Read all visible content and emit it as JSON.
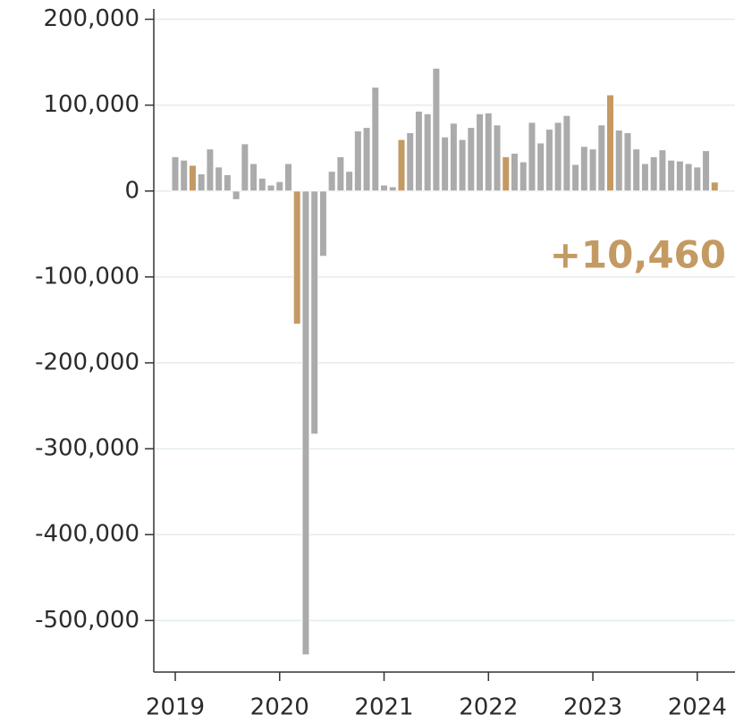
{
  "chart_data": {
    "type": "bar",
    "categories": [
      "2019",
      null,
      null,
      null,
      null,
      null,
      null,
      null,
      null,
      null,
      null,
      null,
      "2020",
      null,
      null,
      null,
      null,
      null,
      null,
      null,
      null,
      null,
      null,
      null,
      "2021",
      null,
      null,
      null,
      null,
      null,
      null,
      null,
      null,
      null,
      null,
      null,
      "2022",
      null,
      null,
      null,
      null,
      null,
      null,
      null,
      null,
      null,
      null,
      null,
      "2023",
      null,
      null,
      null,
      null,
      null,
      null,
      null,
      null,
      null,
      null,
      null,
      "2024",
      null,
      null
    ],
    "values": [
      40000,
      36000,
      30000,
      20000,
      49000,
      28000,
      19000,
      -10000,
      55000,
      32000,
      15000,
      7000,
      11000,
      32000,
      -155000,
      -540000,
      -283000,
      -76000,
      23000,
      40000,
      23000,
      70000,
      74000,
      121000,
      7000,
      5000,
      60000,
      68000,
      93000,
      90000,
      143000,
      63000,
      79000,
      60000,
      74000,
      90000,
      91000,
      77000,
      40000,
      44000,
      34000,
      80000,
      56000,
      72000,
      80000,
      88000,
      31000,
      52000,
      49000,
      77000,
      112000,
      71000,
      68000,
      49000,
      32000,
      40000,
      48000,
      36000,
      35000,
      32000,
      28000,
      47000,
      10460
    ],
    "value_labels": [
      null,
      null,
      null,
      null,
      null,
      null,
      null,
      null,
      null,
      null,
      null,
      null,
      null,
      null,
      null,
      null,
      null,
      null,
      null,
      null,
      null,
      null,
      null,
      null,
      null,
      null,
      null,
      null,
      null,
      null,
      null,
      null,
      null,
      null,
      null,
      null,
      null,
      null,
      null,
      null,
      null,
      null,
      null,
      null,
      null,
      null,
      null,
      null,
      null,
      null,
      null,
      null,
      null,
      null,
      null,
      null,
      null,
      null,
      null,
      null,
      null,
      null,
      "+10,460"
    ],
    "color": "#ababab",
    "highlight_color": "#c49a63",
    "colors": [
      "#ababab",
      "#ababab",
      "#c49a63",
      "#ababab",
      "#ababab",
      "#ababab",
      "#ababab",
      "#ababab",
      "#ababab",
      "#ababab",
      "#ababab",
      "#ababab",
      "#ababab",
      "#ababab",
      "#c49a63",
      "#ababab",
      "#ababab",
      "#ababab",
      "#ababab",
      "#ababab",
      "#ababab",
      "#ababab",
      "#ababab",
      "#ababab",
      "#ababab",
      "#ababab",
      "#c49a63",
      "#ababab",
      "#ababab",
      "#ababab",
      "#ababab",
      "#ababab",
      "#ababab",
      "#ababab",
      "#ababab",
      "#ababab",
      "#ababab",
      "#ababab",
      "#c49a63",
      "#ababab",
      "#ababab",
      "#ababab",
      "#ababab",
      "#ababab",
      "#ababab",
      "#ababab",
      "#ababab",
      "#ababab",
      "#ababab",
      "#ababab",
      "#c49a63",
      "#ababab",
      "#ababab",
      "#ababab",
      "#ababab",
      "#ababab",
      "#ababab",
      "#ababab",
      "#ababab",
      "#ababab",
      "#ababab",
      "#ababab",
      "#c49a63"
    ],
    "ylim": [
      -560000,
      212000
    ],
    "yticks": [
      {
        "value": 200000,
        "label": "200,000"
      },
      {
        "value": 100000,
        "label": "100,000"
      },
      0,
      {
        "value": -100000,
        "label": "-100,000"
      },
      {
        "value": -200000,
        "label": "-200,000"
      },
      {
        "value": -300000,
        "label": "-300,000"
      },
      {
        "value": -400000,
        "label": "-400,000"
      },
      {
        "value": -500000,
        "label": "-500,000"
      }
    ],
    "grid": true
  }
}
